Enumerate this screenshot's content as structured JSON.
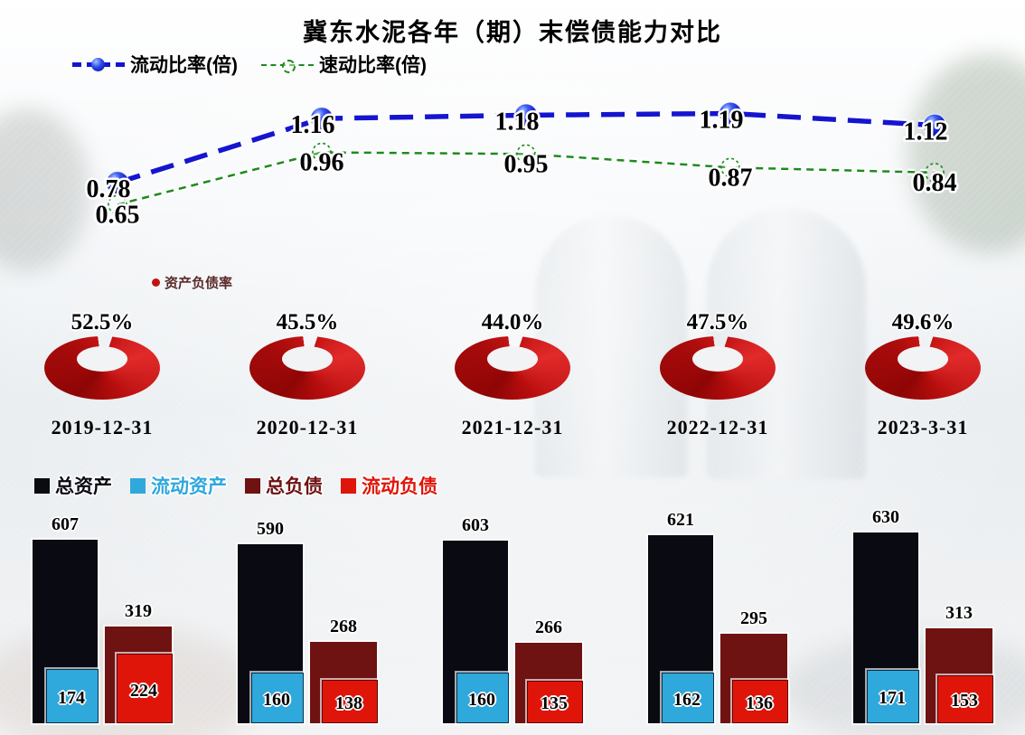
{
  "ui": {
    "title": "冀东水泥各年（期）末偿债能力对比"
  },
  "chart_data": [
    {
      "type": "line",
      "x": [
        "2019-12-31",
        "2020-12-31",
        "2021-12-31",
        "2022-12-31",
        "2023-3-31"
      ],
      "ylim": [
        0.55,
        1.3
      ],
      "legend_position": "top-left",
      "series": [
        {
          "name": "流动比率(倍)",
          "color": "#1515d0",
          "values": [
            0.78,
            1.16,
            1.18,
            1.19,
            1.12
          ]
        },
        {
          "name": "速动比率(倍)",
          "color": "#1e8a1e",
          "values": [
            0.65,
            0.96,
            0.95,
            0.87,
            0.84
          ]
        }
      ]
    },
    {
      "type": "pie",
      "name": "资产负债率",
      "color": "#c41212",
      "categories": [
        "2019-12-31",
        "2020-12-31",
        "2021-12-31",
        "2022-12-31",
        "2023-3-31"
      ],
      "values": [
        52.5,
        45.5,
        44.0,
        47.5,
        49.6
      ],
      "labels": [
        "52.5%",
        "45.5%",
        "44.0%",
        "47.5%",
        "49.6%"
      ]
    },
    {
      "type": "bar",
      "categories": [
        "2019-12-31",
        "2020-12-31",
        "2021-12-31",
        "2022-12-31",
        "2023-3-31"
      ],
      "series": [
        {
          "name": "总资产",
          "color": "#0a0a12",
          "values": [
            607,
            590,
            603,
            621,
            630
          ]
        },
        {
          "name": "流动资产",
          "color": "#2fa8dc",
          "values": [
            174,
            160,
            160,
            162,
            171
          ]
        },
        {
          "name": "总负债",
          "color": "#6f1212",
          "values": [
            319,
            268,
            266,
            295,
            313
          ]
        },
        {
          "name": "流动负债",
          "color": "#e0150a",
          "values": [
            224,
            138,
            135,
            136,
            153
          ]
        }
      ]
    }
  ]
}
